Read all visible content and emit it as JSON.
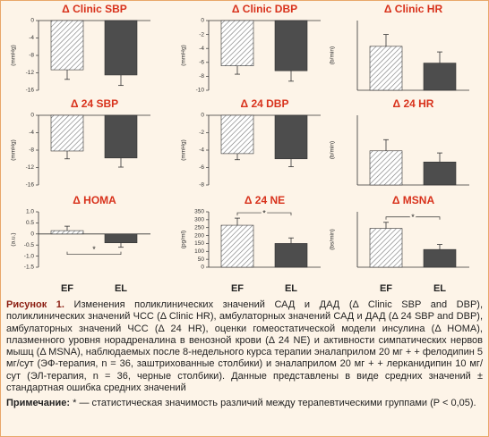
{
  "chart_data": [
    {
      "type": "bar",
      "title": "Δ Clinic SBP",
      "ylabel": "(mmHg)",
      "ylim": [
        -16,
        0
      ],
      "yticks": [
        0,
        -4,
        -8,
        -12,
        -16
      ],
      "values": [
        -11.3,
        -12.5
      ],
      "errors": [
        2.2,
        2.4
      ],
      "colors": [
        "#ffffff",
        "#4d4d4d"
      ],
      "hatch": [
        true,
        false
      ]
    },
    {
      "type": "bar",
      "title": "Δ Clinic DBP",
      "ylabel": "(mmHg)",
      "ylim": [
        -10,
        0
      ],
      "yticks": [
        0,
        -2,
        -4,
        -6,
        -8,
        -10
      ],
      "values": [
        -6.5,
        -7.2
      ],
      "errors": [
        1.2,
        1.5
      ],
      "colors": [
        "#ffffff",
        "#4d4d4d"
      ],
      "hatch": [
        true,
        false
      ]
    },
    {
      "type": "bar",
      "title": "Δ Clinic HR",
      "ylabel": "(b/min)",
      "ylim": [
        0,
        10
      ],
      "values": [
        6.3,
        3.9
      ],
      "errors": [
        1.7,
        1.6
      ],
      "colors": [
        "#ffffff",
        "#4d4d4d"
      ],
      "hatch": [
        true,
        false
      ]
    },
    {
      "type": "bar",
      "title": "Δ 24 SBP",
      "ylabel": "(mmHg)",
      "ylim": [
        -16,
        0
      ],
      "yticks": [
        0,
        -4,
        -8,
        -12,
        -16
      ],
      "values": [
        -8.2,
        -9.8
      ],
      "errors": [
        1.8,
        2.1
      ],
      "colors": [
        "#ffffff",
        "#4d4d4d"
      ],
      "hatch": [
        true,
        false
      ]
    },
    {
      "type": "bar",
      "title": "Δ 24 DBP",
      "ylabel": "(mmHg)",
      "ylim": [
        -8,
        0
      ],
      "yticks": [
        0,
        -2,
        -4,
        -6,
        -8
      ],
      "values": [
        -4.4,
        -5
      ],
      "errors": [
        0.7,
        0.9
      ],
      "colors": [
        "#ffffff",
        "#4d4d4d"
      ],
      "hatch": [
        true,
        false
      ]
    },
    {
      "type": "bar",
      "title": "Δ 24 HR",
      "ylabel": "(b/min)",
      "ylim": [
        0,
        10
      ],
      "values": [
        4.9,
        3.3
      ],
      "errors": [
        1.6,
        1.3
      ],
      "colors": [
        "#ffffff",
        "#4d4d4d"
      ],
      "hatch": [
        true,
        false
      ]
    },
    {
      "type": "bar",
      "title": "Δ HOMA",
      "ylabel": "(a.u.)",
      "ylim": [
        -1.5,
        1
      ],
      "yticks": [
        {
          "value": 1,
          "label": "1.0"
        },
        0.5,
        0,
        -0.5,
        {
          "value": -1,
          "label": "-1.0"
        },
        -1.5
      ],
      "categories": [
        "EF",
        "EL"
      ],
      "values": [
        0.15,
        -0.4
      ],
      "errors": [
        0.2,
        0.2
      ],
      "colors": [
        "#ffffff",
        "#4d4d4d"
      ],
      "hatch": [
        true,
        false
      ],
      "annotation": "*"
    },
    {
      "type": "bar",
      "title": "Δ 24 NE",
      "ylabel": "(pg/ml)",
      "ylim": [
        0,
        350
      ],
      "yticks": [
        0,
        50,
        100,
        150,
        200,
        250,
        300,
        350
      ],
      "categories": [
        "EF",
        "EL"
      ],
      "values": [
        265,
        150
      ],
      "errors": [
        45,
        35
      ],
      "colors": [
        "#ffffff",
        "#4d4d4d"
      ],
      "hatch": [
        true,
        false
      ],
      "annotation": "*"
    },
    {
      "type": "bar",
      "title": "Δ MSNA",
      "ylabel": "(bs/min)",
      "ylim": [
        0,
        10
      ],
      "values": [
        7,
        3.2
      ],
      "errors": [
        1.1,
        0.9
      ],
      "categories": [
        "EF",
        "EL"
      ],
      "colors": [
        "#ffffff",
        "#4d4d4d"
      ],
      "hatch": [
        true,
        false
      ],
      "annotation": "*"
    }
  ],
  "caption": {
    "label": "Рисунок 1.",
    "text": " Изменения поликлинических значений САД и ДАД (Δ Clinic SBP and DBP), поликлинических значений ЧСС (Δ Clinic HR), амбулаторных значений САД и ДАД (Δ 24 SBP and DBP), амбулаторных значений ЧСС (Δ 24 HR), оценки гомеостатической модели инсулина (Δ HOMA), плазменного уровня норадреналина в венозной крови (Δ 24 NE) и активности симпатических нервов мышц (Δ MSNA), наблюдаемых после 8-недельного курса терапии эналаприлом 20 мг + + фелодипин 5 мг/сут (ЭФ-терапия, n = 36, заштрихованные столбики) и эналаприлом 20 мг + + лерканидипин 10 мг/сут (ЭЛ-терапия, n = 36, черные столбики). Данные представлены в виде средних значений ± стандартная ошибка средних значений"
  },
  "note": {
    "label": "Примечание:",
    "text": " * — статистическая значимость различий между терапевтическими группами (P < 0,05)."
  }
}
